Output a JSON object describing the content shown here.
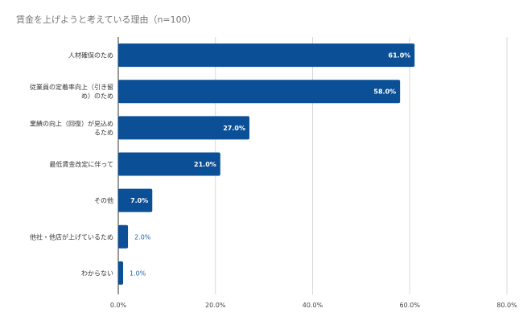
{
  "chart_data": {
    "type": "bar",
    "orientation": "horizontal",
    "title": "賃金を上げようと考えている理由（n=100）",
    "categories": [
      [
        "人材確保のため"
      ],
      [
        "従業員の定着率向上（引き留",
        "め）のため"
      ],
      [
        "業績の向上（回復）が見込め",
        "るため"
      ],
      [
        "最低賃金改定に伴って"
      ],
      [
        "その他"
      ],
      [
        "他社・他店が上げているため"
      ],
      [
        "わからない"
      ]
    ],
    "values": [
      61.0,
      58.0,
      27.0,
      21.0,
      7.0,
      2.0,
      1.0
    ],
    "value_labels": [
      "61.0%",
      "58.0%",
      "27.0%",
      "21.0%",
      "7.0%",
      "2.0%",
      "1.0%"
    ],
    "xlim": [
      0,
      80
    ],
    "x_ticks": [
      0,
      20,
      40,
      60,
      80
    ],
    "x_tick_labels": [
      "0.0%",
      "20.0%",
      "40.0%",
      "60.0%",
      "80.0%"
    ],
    "grid": true,
    "legend": "none",
    "bar_color": "#0b4f96",
    "outside_label_color": "#1f5fa6"
  }
}
